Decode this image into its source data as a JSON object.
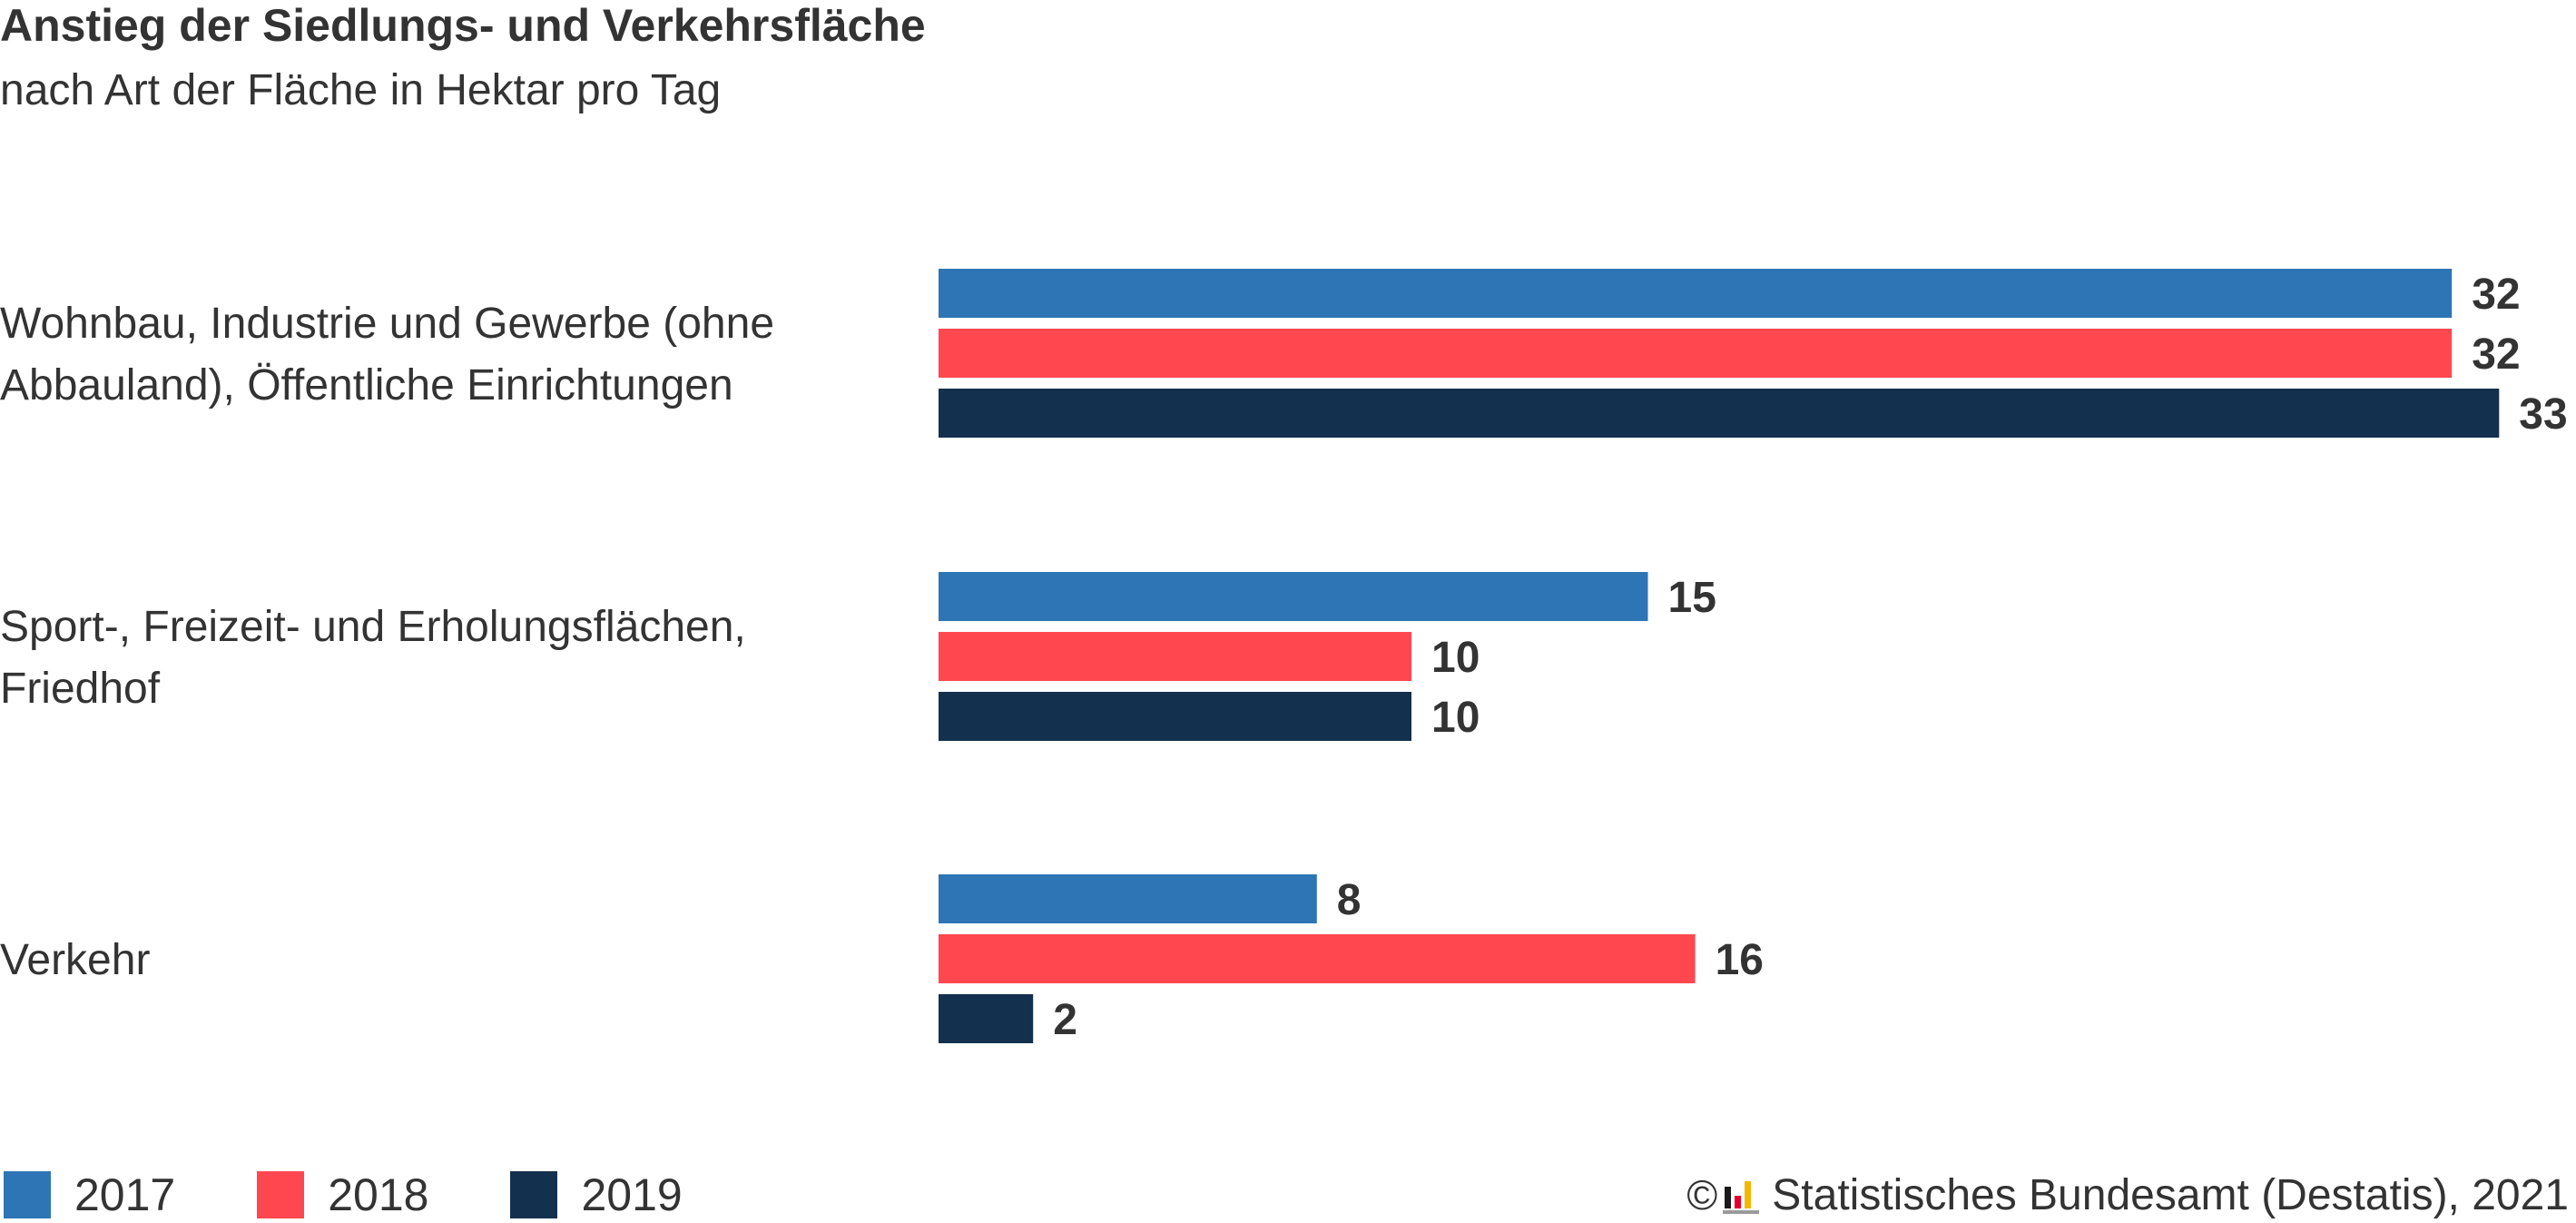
{
  "header": {
    "title": "Anstieg der Siedlungs- und Verkehrsfläche",
    "subtitle": "nach Art der Fläche in Hektar pro Tag"
  },
  "chart_data": {
    "type": "bar",
    "orientation": "horizontal",
    "title": "Anstieg der Siedlungs- und Verkehrsfläche",
    "subtitle": "nach Art der Fläche in Hektar pro Tag",
    "categories": [
      [
        "Wohnbau, Industrie und Gewerbe (ohne",
        "Abbauland), Öffentliche Einrichtungen"
      ],
      [
        "Sport-, Freizeit- und Erholungsflächen,",
        "Friedhof"
      ],
      [
        "Verkehr"
      ]
    ],
    "series": [
      {
        "name": "2017",
        "color": "#2e75b6",
        "values": [
          32,
          15,
          8
        ]
      },
      {
        "name": "2018",
        "color": "#ff474f",
        "values": [
          32,
          10,
          16
        ]
      },
      {
        "name": "2019",
        "color": "#14304f",
        "values": [
          33,
          10,
          2
        ]
      }
    ],
    "xlim": [
      0,
      33
    ],
    "grid": false,
    "data_labels": true,
    "legend_position": "bottom-left"
  },
  "legend": {
    "items": [
      {
        "label": "2017",
        "color": "#2e75b6"
      },
      {
        "label": "2018",
        "color": "#ff474f"
      },
      {
        "label": "2019",
        "color": "#14304f"
      }
    ]
  },
  "source": {
    "copyright": "©",
    "text": "Statistisches Bundesamt (Destatis), 2021",
    "logo_icon": "destatis-logo-icon"
  }
}
